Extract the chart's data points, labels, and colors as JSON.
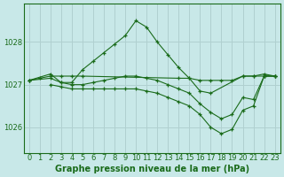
{
  "background_color": "#c8e8e8",
  "grid_color": "#b0d0d0",
  "line_color": "#1a6b1a",
  "xlabel": "Graphe pression niveau de la mer (hPa)",
  "xlabel_fontsize": 7,
  "tick_fontsize": 6,
  "ylim": [
    1025.4,
    1028.9
  ],
  "xlim": [
    -0.5,
    23.5
  ],
  "yticks": [
    1026,
    1027,
    1028
  ],
  "xticks": [
    0,
    1,
    2,
    3,
    4,
    5,
    6,
    7,
    8,
    9,
    10,
    11,
    12,
    13,
    14,
    15,
    16,
    17,
    18,
    19,
    20,
    21,
    22,
    23
  ],
  "series": [
    {
      "x": [
        0,
        1,
        2,
        3,
        4,
        5,
        14,
        15,
        16,
        17,
        18,
        19,
        20,
        21,
        22,
        23
      ],
      "y": [
        1027.1,
        1027.15,
        1027.2,
        1027.2,
        1027.2,
        1027.2,
        1027.15,
        1027.15,
        1027.1,
        1027.1,
        1027.1,
        1027.1,
        1027.2,
        1027.2,
        1027.2,
        1027.2
      ]
    },
    {
      "x": [
        0,
        2,
        3,
        4,
        5,
        6,
        7,
        8,
        9,
        10,
        11,
        12,
        13,
        14,
        15,
        16,
        17,
        20,
        21,
        22,
        23
      ],
      "y": [
        1027.1,
        1027.25,
        1027.05,
        1027.05,
        1027.35,
        1027.55,
        1027.75,
        1027.95,
        1028.15,
        1028.5,
        1028.35,
        1028.0,
        1027.7,
        1027.4,
        1027.15,
        1026.85,
        1026.8,
        1027.2,
        1027.2,
        1027.25,
        1027.2
      ]
    },
    {
      "x": [
        0,
        2,
        3,
        4,
        5,
        6,
        7,
        8,
        9,
        10,
        11,
        12,
        13,
        14,
        15,
        16,
        17,
        18,
        19,
        20,
        21,
        22,
        23
      ],
      "y": [
        1027.1,
        1027.15,
        1027.05,
        1027.0,
        1027.0,
        1027.05,
        1027.1,
        1027.15,
        1027.2,
        1027.2,
        1027.15,
        1027.1,
        1027.0,
        1026.9,
        1026.8,
        1026.55,
        1026.35,
        1026.2,
        1026.3,
        1026.7,
        1026.65,
        1027.2,
        1027.2
      ]
    },
    {
      "x": [
        2,
        3,
        4,
        5,
        6,
        7,
        8,
        9,
        10,
        11,
        12,
        13,
        14,
        15,
        16,
        17,
        18,
        19,
        20,
        21,
        22,
        23
      ],
      "y": [
        1027.0,
        1026.95,
        1026.9,
        1026.9,
        1026.9,
        1026.9,
        1026.9,
        1026.9,
        1026.9,
        1026.85,
        1026.8,
        1026.7,
        1026.6,
        1026.5,
        1026.3,
        1026.0,
        1025.85,
        1025.95,
        1026.4,
        1026.5,
        1027.2,
        1027.2
      ]
    }
  ]
}
